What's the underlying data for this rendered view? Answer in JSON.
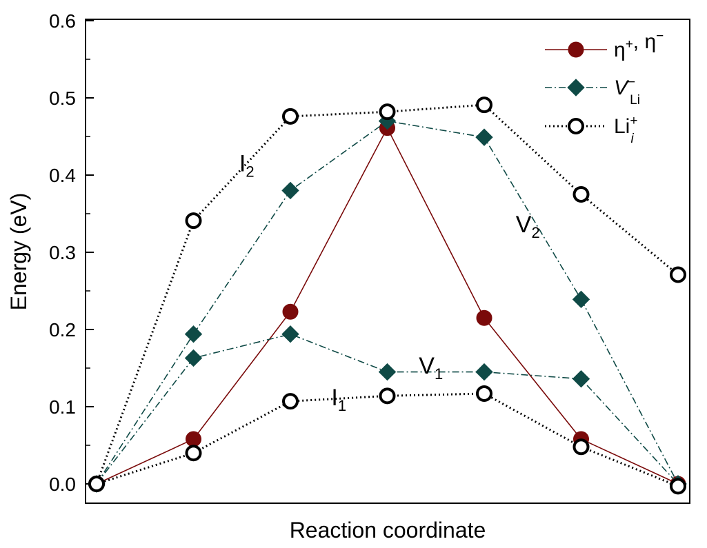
{
  "chart_data": {
    "type": "line",
    "xlabel": "Reaction coordinate",
    "ylabel": "Energy (eV)",
    "ylim": [
      0.0,
      0.6
    ],
    "yticks": [
      "0.0",
      "0.1",
      "0.2",
      "0.3",
      "0.4",
      "0.5",
      "0.6"
    ],
    "xlim": [
      -0.1,
      6.1
    ],
    "x_tick_labels_shown": false,
    "grid": false,
    "legend_position": "top-right",
    "legend": [
      {
        "key": "polaron",
        "main": "η",
        "sup": "+",
        "mid": ", η",
        "sup2": "−",
        "sub": ""
      },
      {
        "key": "vli",
        "main": "V",
        "sup": "−",
        "mid": "",
        "sup2": "",
        "sub": "Li"
      },
      {
        "key": "lii",
        "main": "Li",
        "sup": "+",
        "mid": "",
        "sup2": "",
        "sub": "i"
      }
    ],
    "series": [
      {
        "name": "η+, η−",
        "key": "polaron",
        "color": "#7a0a0a",
        "line": "solid",
        "marker": "filled-circle",
        "paths": [
          {
            "x": [
              0,
              1,
              2,
              3,
              4,
              5,
              6
            ],
            "y": [
              0.0,
              0.058,
              0.223,
              0.461,
              0.215,
              0.058,
              0.0
            ]
          }
        ]
      },
      {
        "name": "V−Li",
        "key": "vli",
        "color": "#0f4a46",
        "line": "dashdot",
        "marker": "filled-diamond",
        "paths": [
          {
            "label": "V2",
            "x": [
              0,
              1,
              2,
              3,
              4,
              5,
              6
            ],
            "y": [
              0.0,
              0.194,
              0.38,
              0.47,
              0.449,
              0.239,
              0.0
            ]
          },
          {
            "label": "V1",
            "x": [
              0,
              1,
              2,
              3,
              4,
              5,
              6
            ],
            "y": [
              0.0,
              0.163,
              0.194,
              0.145,
              0.145,
              0.136,
              0.0
            ]
          }
        ]
      },
      {
        "name": "Li+i",
        "key": "lii",
        "color": "#000000",
        "line": "dotted",
        "marker": "open-circle",
        "paths": [
          {
            "label": "I2",
            "x": [
              0,
              1,
              2,
              3,
              4,
              5,
              6
            ],
            "y": [
              0.0,
              0.341,
              0.476,
              0.482,
              0.491,
              0.375,
              0.271
            ]
          },
          {
            "label": "I1",
            "x": [
              0,
              1,
              2,
              3,
              4,
              5,
              6
            ],
            "y": [
              0.0,
              0.04,
              0.107,
              0.114,
              0.117,
              0.048,
              -0.003
            ]
          }
        ]
      }
    ],
    "annotations": [
      {
        "text": "I",
        "sub": "2",
        "x": 1.55,
        "y": 0.405
      },
      {
        "text": "V",
        "sub": "2",
        "x": 4.45,
        "y": 0.326
      },
      {
        "text": "V",
        "sub": "1",
        "x": 3.45,
        "y": 0.143
      },
      {
        "text": "I",
        "sub": "1",
        "x": 2.5,
        "y": 0.102
      }
    ]
  }
}
